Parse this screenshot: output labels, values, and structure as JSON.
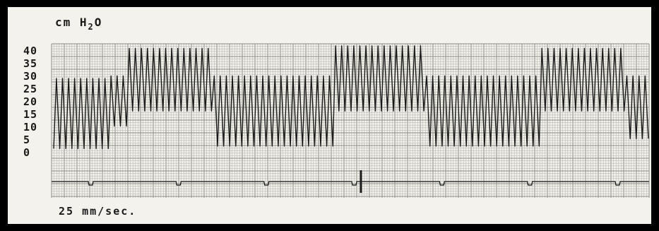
{
  "chart_data": {
    "type": "line",
    "title": "",
    "ylabel": {
      "prefix": "cm H",
      "subscript": "2",
      "suffix": "O"
    },
    "xlabel": "25 mm/sec.",
    "yticks": [
      40,
      35,
      30,
      25,
      20,
      15,
      10,
      5,
      0
    ],
    "ylim": [
      0,
      40
    ],
    "grid": true,
    "series": [
      {
        "segments": [
          {
            "cycles": 9,
            "min": 1,
            "max": 29
          },
          {
            "cycles": 3,
            "min": 10,
            "max": 30
          },
          {
            "cycles": 14,
            "min": 16,
            "max": 41
          },
          {
            "cycles": 20,
            "min": 2,
            "max": 30
          },
          {
            "cycles": 15,
            "min": 16,
            "max": 42
          },
          {
            "cycles": 19,
            "min": 2,
            "max": 30
          },
          {
            "cycles": 14,
            "min": 16,
            "max": 41
          },
          {
            "cycles": 4,
            "min": 5,
            "max": 30
          }
        ]
      }
    ],
    "timing_marks": 7
  },
  "colors": {
    "paper": "#f4f2ec",
    "grid_minor": "#b8b8b4",
    "grid_major": "#8a8a86",
    "trace": "#1a1a1a"
  }
}
